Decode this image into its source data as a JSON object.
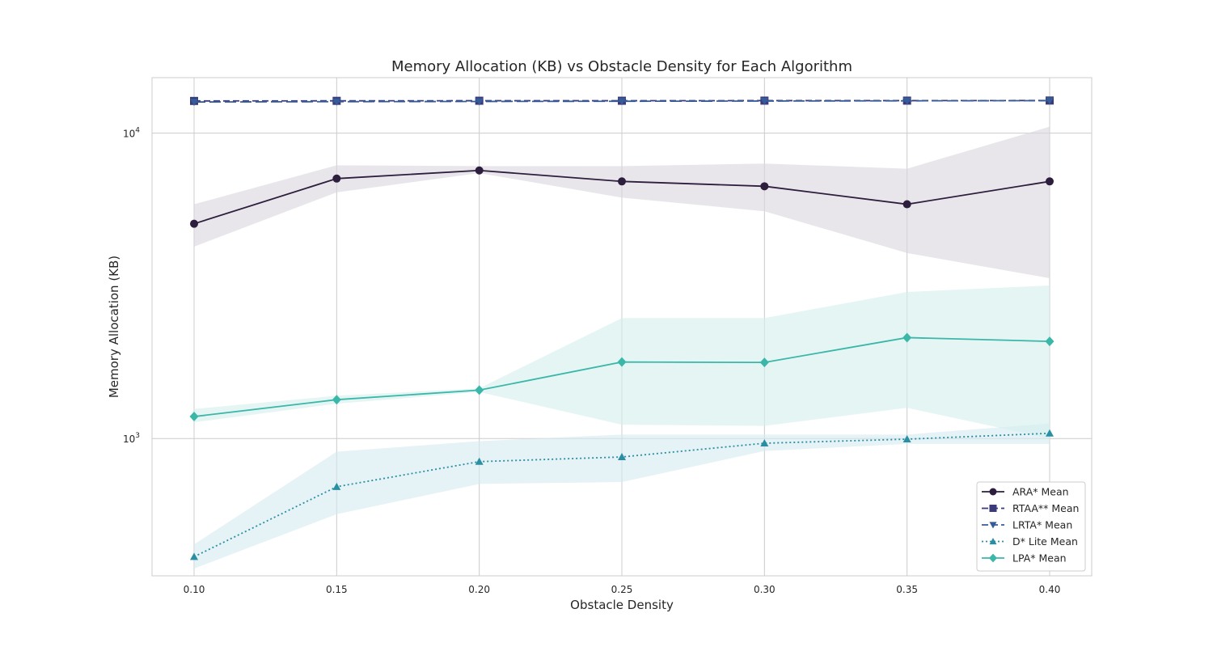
{
  "chart_data": {
    "type": "line",
    "title": "Memory Allocation (KB) vs Obstacle Density for Each Algorithm",
    "xlabel": "Obstacle Density",
    "ylabel": "Memory Allocation (KB)",
    "yscale": "log",
    "ylim": [
      355,
      15200
    ],
    "x": [
      0.1,
      0.15,
      0.2,
      0.25,
      0.3,
      0.35,
      0.4
    ],
    "x_tick_labels": [
      "0.10",
      "0.15",
      "0.20",
      "0.25",
      "0.30",
      "0.35",
      "0.40"
    ],
    "y_ticks": [
      {
        "base": "10",
        "exp": "3",
        "value": 1000
      },
      {
        "base": "10",
        "exp": "4",
        "value": 10000
      }
    ],
    "grid": true,
    "legend_position": "lower right",
    "series": [
      {
        "name": "ARA* Mean",
        "color": "#2d1e3e",
        "marker": "circle",
        "dash": "solid",
        "values": [
          5050,
          7100,
          7550,
          6950,
          6700,
          5850,
          6950
        ],
        "band_lower": [
          4250,
          6400,
          7400,
          6150,
          5550,
          4050,
          3350
        ],
        "band_upper": [
          5850,
          7850,
          7800,
          7800,
          7950,
          7650,
          10500
        ],
        "band_color": "#d8d6dc"
      },
      {
        "name": "RTAA** Mean",
        "color": "#3b3a7a",
        "marker": "square",
        "dash": "dashed",
        "values": [
          12750,
          12760,
          12770,
          12770,
          12780,
          12780,
          12790
        ]
      },
      {
        "name": "LRTA* Mean",
        "color": "#355c99",
        "marker": "triangle-down",
        "dash": "longdash",
        "values": [
          12650,
          12680,
          12700,
          12720,
          12740,
          12760,
          12780
        ]
      },
      {
        "name": "D* Lite Mean",
        "color": "#2a8fa3",
        "marker": "triangle-up",
        "dash": "dotted",
        "values": [
          410,
          695,
          840,
          870,
          965,
          995,
          1040
        ],
        "band_lower": [
          375,
          565,
          710,
          720,
          910,
          960,
          960
        ],
        "band_upper": [
          450,
          905,
          980,
          1030,
          1030,
          1030,
          1120
        ],
        "band_color": "#d4eaf0"
      },
      {
        "name": "LPA* Mean",
        "color": "#3ab7a8",
        "marker": "diamond",
        "dash": "solid",
        "values": [
          1180,
          1340,
          1440,
          1780,
          1775,
          2140,
          2080
        ],
        "band_lower": [
          1130,
          1300,
          1420,
          1110,
          1100,
          1260,
          1000
        ],
        "band_upper": [
          1250,
          1380,
          1460,
          2480,
          2480,
          3020,
          3170
        ],
        "band_color": "#d4eeec"
      }
    ]
  }
}
